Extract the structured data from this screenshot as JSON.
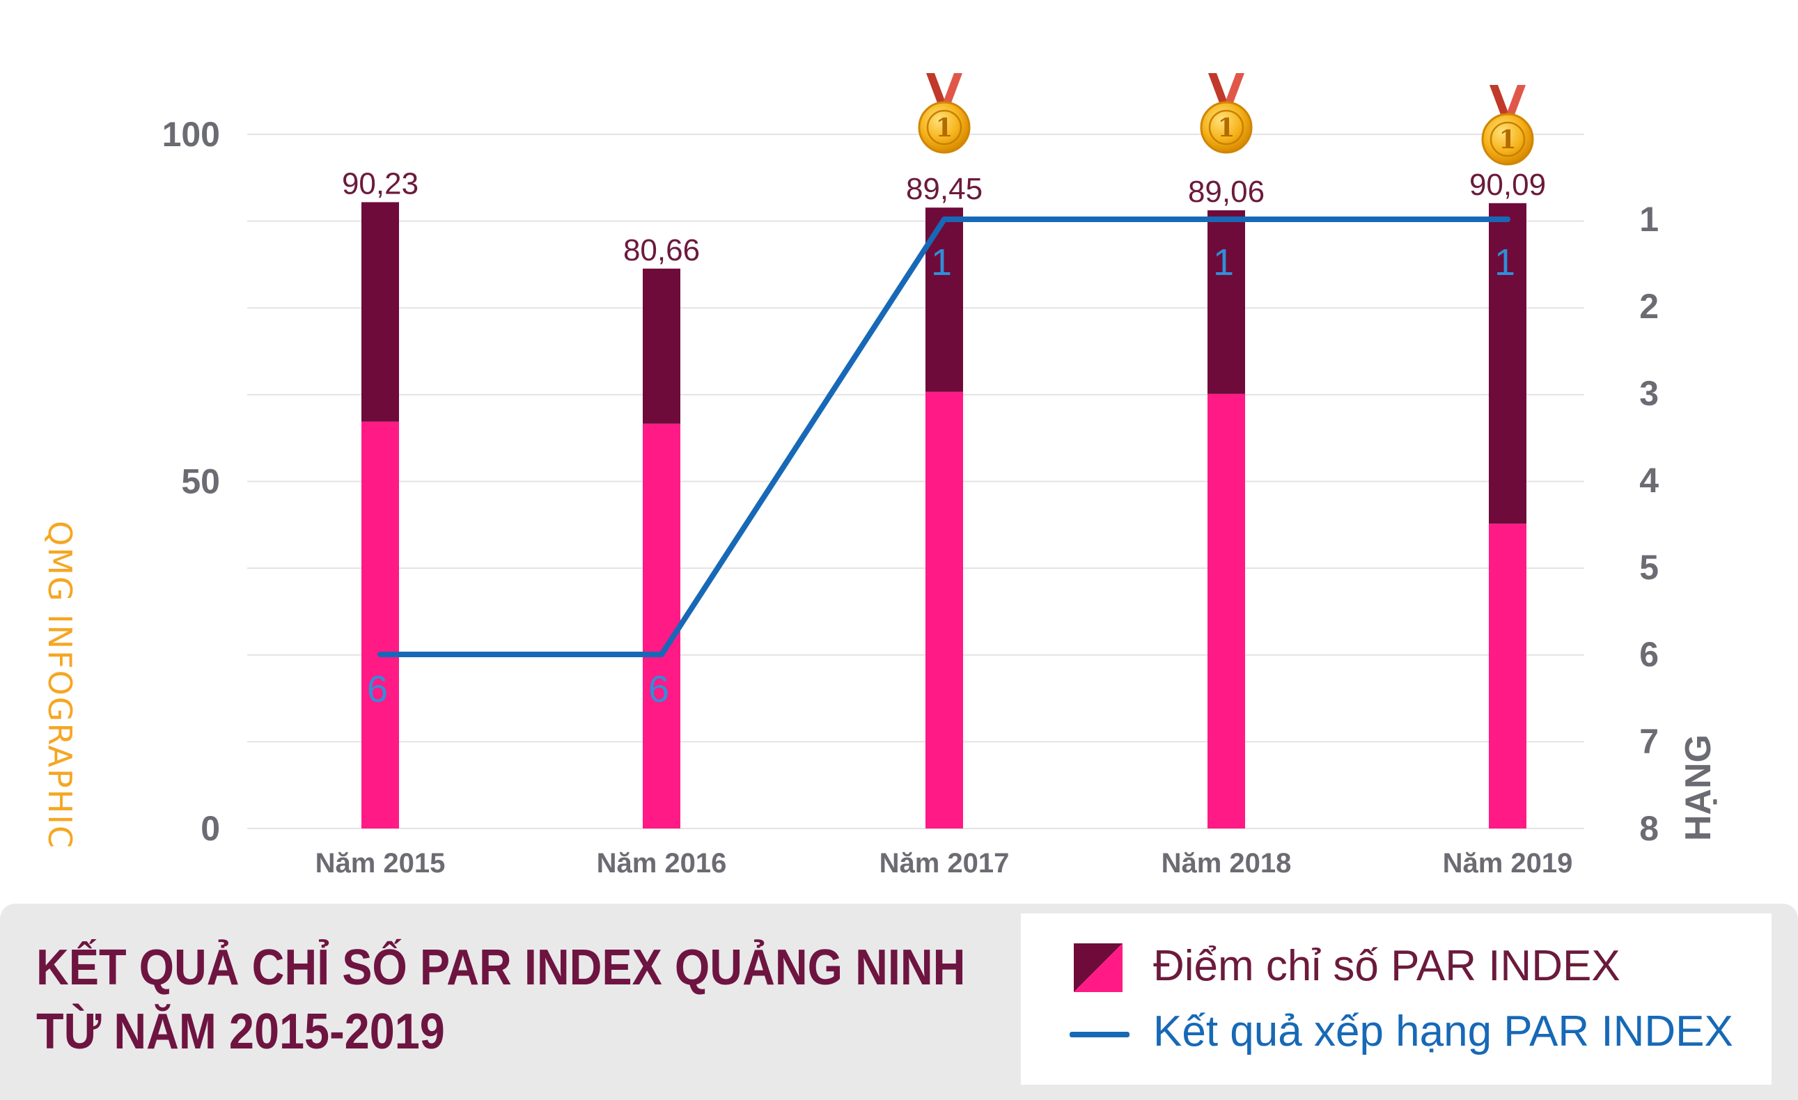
{
  "chart_data": {
    "type": "bar+line",
    "categories": [
      "Năm 2015",
      "Năm 2016",
      "Năm 2017",
      "Năm 2018",
      "Năm 2019"
    ],
    "series": [
      {
        "name": "Điểm chỉ số PAR INDEX",
        "type": "bar",
        "values": [
          90.23,
          80.66,
          89.45,
          89.06,
          90.09
        ],
        "value_labels": [
          "90,23",
          "80,66",
          "89,45",
          "89,06",
          "90,09"
        ],
        "lower_segment_values": [
          58.6,
          58.3,
          62.9,
          62.6,
          43.9
        ]
      },
      {
        "name": "Kết quả xếp hạng PAR INDEX",
        "type": "line",
        "axis": "right",
        "values": [
          6,
          6,
          1,
          1,
          1
        ],
        "value_labels": [
          "6",
          "6",
          "1",
          "1",
          "1"
        ]
      }
    ],
    "ylim": [
      0,
      100
    ],
    "y_ticks": [
      "0",
      "50",
      "100"
    ],
    "y2lim": [
      8,
      0
    ],
    "y2_ticks": [
      "1",
      "2",
      "3",
      "4",
      "5",
      "6",
      "7",
      "8"
    ],
    "y2label": "HẠNG",
    "medal_categories": [
      "Năm 2017",
      "Năm 2018",
      "Năm 2019"
    ],
    "medal_text": "1",
    "grid": true
  },
  "watermark": "QMG INFOGRAPHIC",
  "title_lines": [
    "KẾT QUẢ CHỈ SỐ PAR INDEX QUẢNG NINH",
    "TỪ NĂM 2015-2019"
  ],
  "legend": {
    "bar_label": "Điểm chỉ số PAR INDEX",
    "line_label": "Kết quả xếp hạng PAR INDEX"
  },
  "colors": {
    "bar_upper": "#6e0b3a",
    "bar_lower": "#ff1a86",
    "line": "#1769b7",
    "rank_text": "#2f8fd8",
    "value_text": "#6b1a3c",
    "title_text": "#6e1440",
    "legend_bar_text": "#6b1a3c",
    "legend_line_text": "#1769b7",
    "grid": "#e3e3e3"
  }
}
